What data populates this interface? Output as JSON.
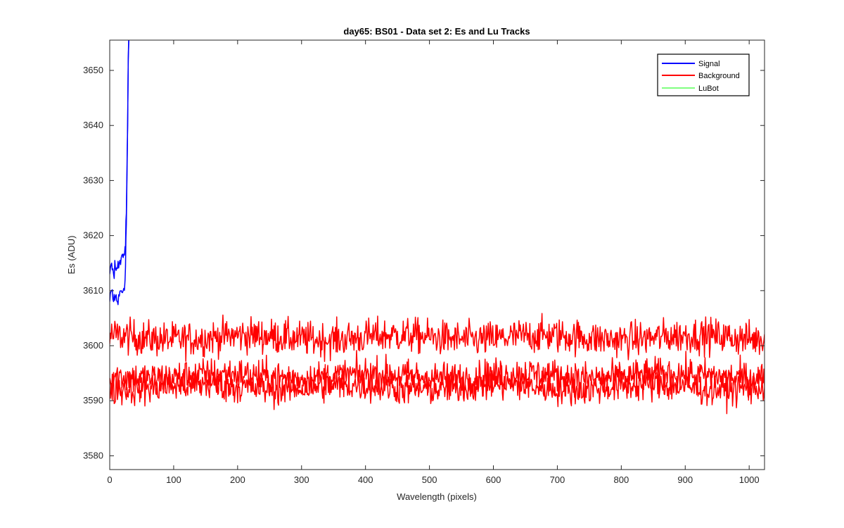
{
  "chart_data": {
    "type": "line",
    "title": "day65: BS01 - Data set 2: Es and Lu Tracks",
    "xlabel": "Wavelength (pixels)",
    "ylabel": "Es (ADU)",
    "xlim": [
      0,
      1024
    ],
    "ylim": [
      3577.5,
      3655.5
    ],
    "xticks": [
      0,
      100,
      200,
      300,
      400,
      500,
      600,
      700,
      800,
      900,
      1000
    ],
    "yticks": [
      3580,
      3590,
      3600,
      3610,
      3620,
      3630,
      3640,
      3650
    ],
    "grid": false,
    "legend_position": "top-right",
    "legend": [
      {
        "label": "Signal",
        "color": "#0000ff"
      },
      {
        "label": "Background",
        "color": "#ff0000"
      },
      {
        "label": "LuBot",
        "color": "#00ff00"
      }
    ],
    "series": [
      {
        "name": "Signal",
        "color": "#0000ff",
        "x": [
          0,
          3,
          6,
          9,
          12,
          15,
          18,
          21,
          24,
          26,
          28,
          29,
          30
        ],
        "y": [
          3608,
          3610,
          3608,
          3609,
          3608,
          3609,
          3610,
          3610,
          3612,
          3622,
          3640,
          3652,
          3656
        ]
      },
      {
        "name": "Signal",
        "color": "#0000ff",
        "x": [
          0,
          3,
          6,
          9,
          12,
          15,
          18,
          21,
          24,
          26,
          28,
          29,
          30
        ],
        "y": [
          3613,
          3615,
          3613,
          3614,
          3614,
          3615,
          3616,
          3616,
          3618,
          3624,
          3640,
          3652,
          3656
        ]
      },
      {
        "name": "Background",
        "color": "#ff0000",
        "level": 3601.5,
        "noise": 1.6,
        "x_range": [
          0,
          1024
        ]
      },
      {
        "name": "Background",
        "color": "#ff0000",
        "level": 3594.5,
        "noise": 1.5,
        "x_range": [
          0,
          1024
        ]
      },
      {
        "name": "Background",
        "color": "#ff0000",
        "level": 3592.5,
        "noise": 1.5,
        "x_range": [
          0,
          1024
        ]
      }
    ]
  }
}
